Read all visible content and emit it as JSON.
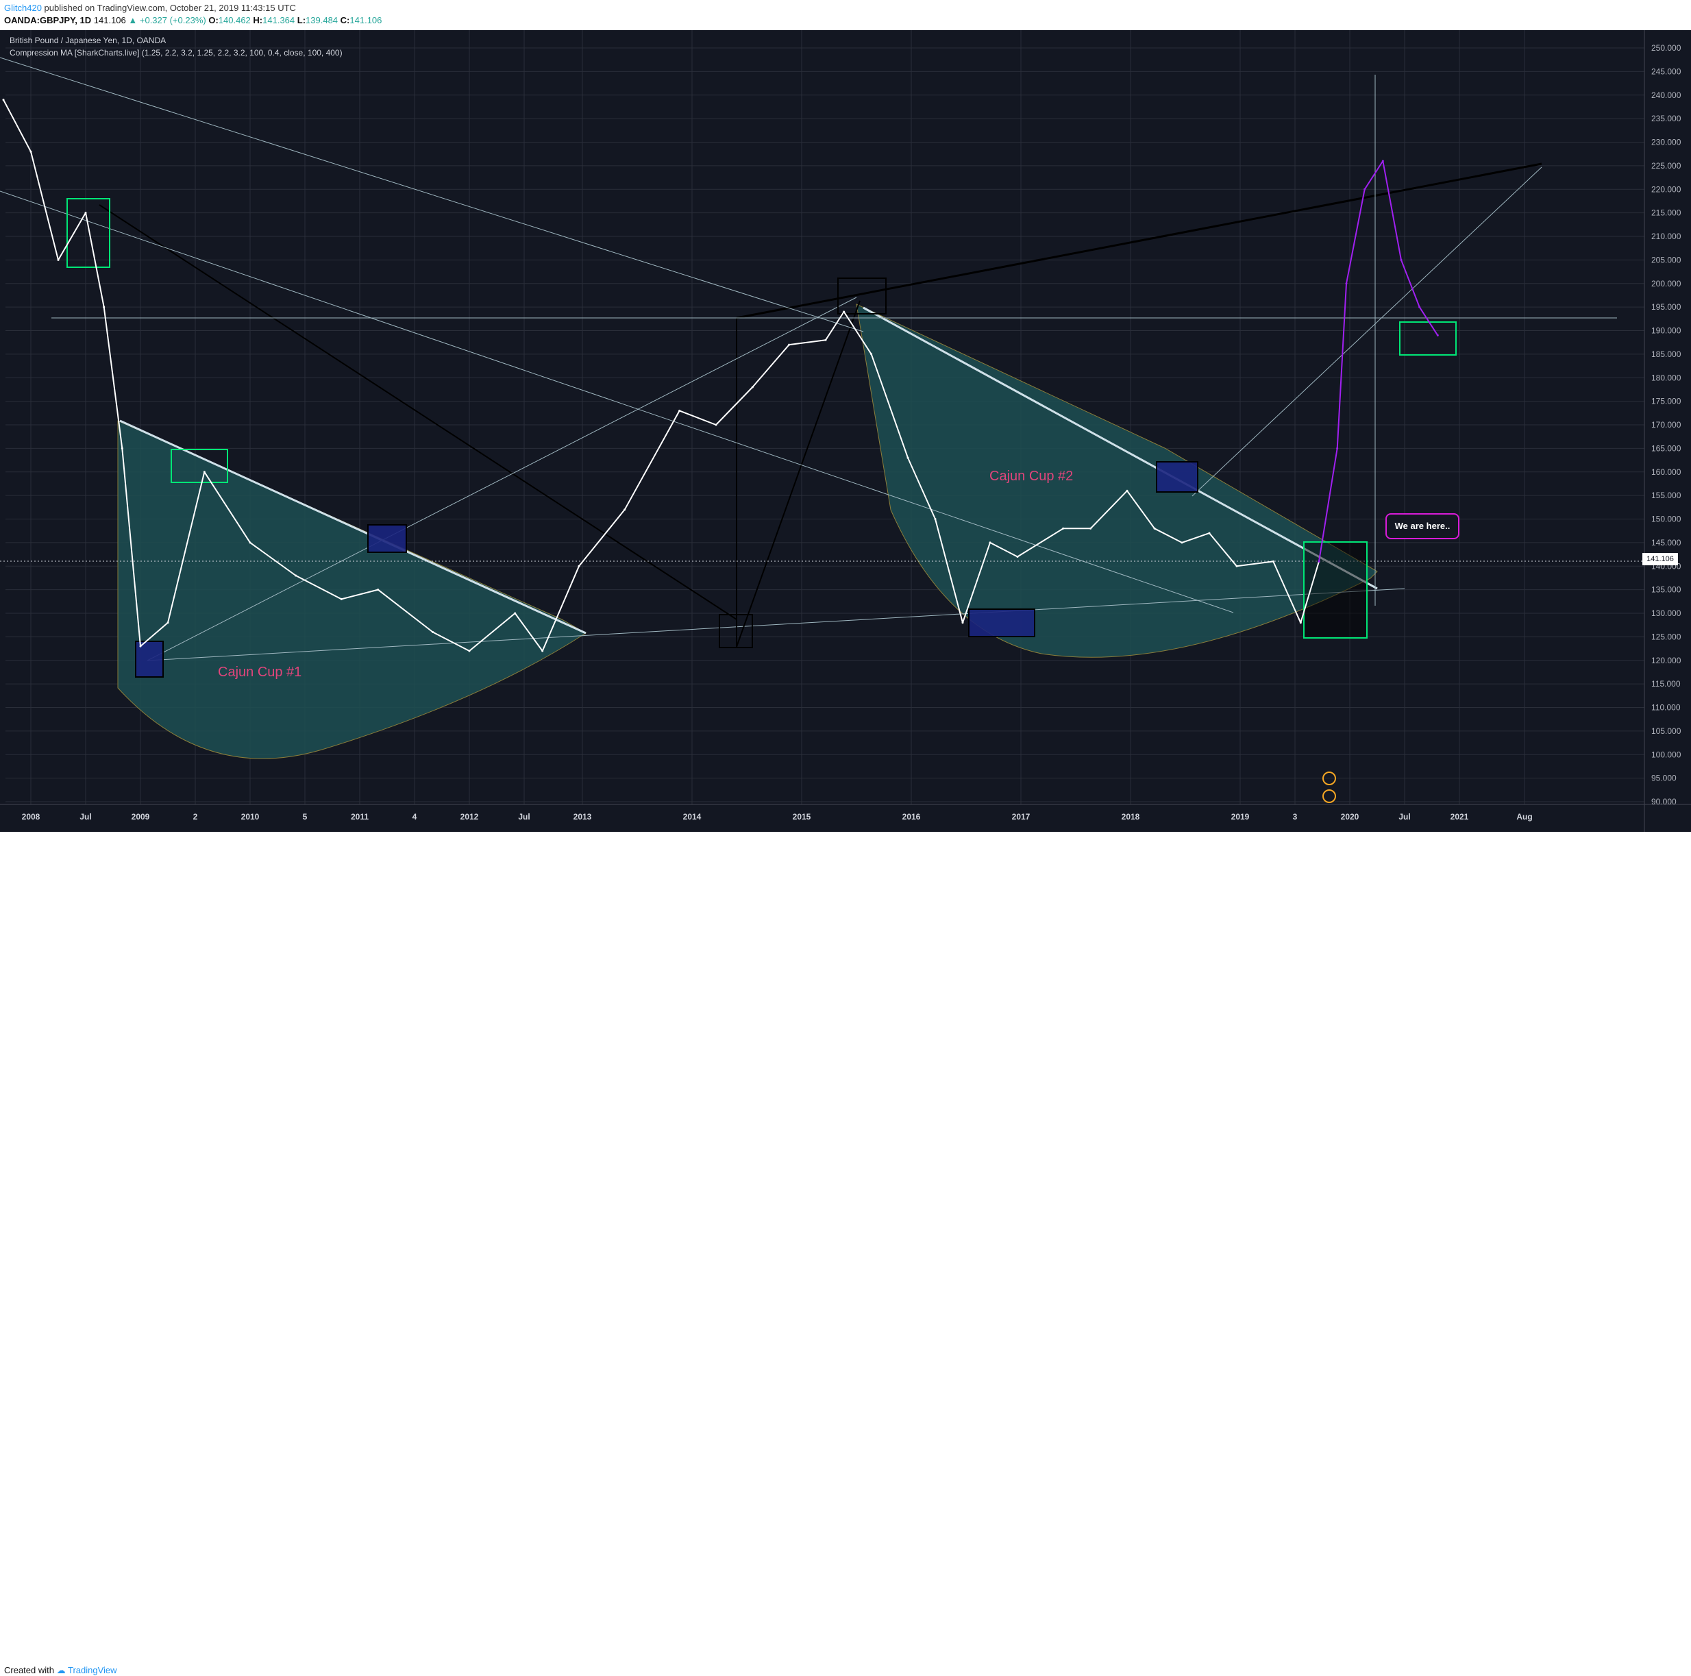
{
  "header": {
    "username": "Glitch420",
    "published_text": "published on TradingView.com, October 21, 2019 11:43:15 UTC",
    "symbol_line": "OANDA:GBPJPY, 1D",
    "last": "141.106",
    "change": "▲ +0.327 (+0.23%)",
    "open_label": "O:",
    "open": "140.462",
    "high_label": "H:",
    "high": "141.364",
    "low_label": "L:",
    "low": "139.484",
    "close_label": "C:",
    "close": "141.106"
  },
  "legend": {
    "title": "British Pound / Japanese Yen, 1D, OANDA",
    "indicator": "Compression MA [SharkCharts.live] (1.25, 2.2, 3.2, 1.25, 2.2, 3.2, 100, 0.4, close, 100, 400)"
  },
  "annotations": {
    "cup1": "Cajun Cup #1",
    "cup2": "Cajun Cup #2",
    "callout": "We are here.."
  },
  "footer": {
    "created_with": "Created with",
    "brand": "TradingView"
  },
  "colors": {
    "background": "#131722",
    "price": "#ffffff",
    "ma_fast": "#e91e63",
    "projection": "#a020f0",
    "cup_fill": "#1d4f52",
    "box_blue": "#1a237e",
    "box_green": "#00e676",
    "grid": "#2a2e39"
  },
  "chart_data": {
    "type": "line",
    "title": "British Pound / Japanese Yen, 1D, OANDA",
    "xlabel": "",
    "ylabel": "",
    "ylim": [
      90,
      250
    ],
    "y_ticks": [
      "250.000",
      "245.000",
      "240.000",
      "235.000",
      "230.000",
      "225.000",
      "220.000",
      "215.000",
      "210.000",
      "205.000",
      "200.000",
      "195.000",
      "190.000",
      "185.000",
      "180.000",
      "175.000",
      "170.000",
      "165.000",
      "160.000",
      "155.000",
      "150.000",
      "145.000",
      "140.000",
      "135.000",
      "130.000",
      "125.000",
      "120.000",
      "115.000",
      "110.000",
      "105.000",
      "100.000",
      "95.000",
      "90.000"
    ],
    "x_ticks": [
      "2008",
      "Jul",
      "2009",
      "2",
      "2010",
      "5",
      "2011",
      "4",
      "2012",
      "Jul",
      "2013",
      "2014",
      "2015",
      "2016",
      "2017",
      "2018",
      "2019",
      "3",
      "2020",
      "Jul",
      "2021",
      "Aug"
    ],
    "last_price": "141.106",
    "series": [
      {
        "name": "GBPJPY",
        "x": [
          "2007-10",
          "2008-01",
          "2008-04",
          "2008-07",
          "2008-09",
          "2008-11",
          "2009-01",
          "2009-04",
          "2009-08",
          "2010-01",
          "2010-06",
          "2010-11",
          "2011-03",
          "2011-09",
          "2012-01",
          "2012-06",
          "2012-09",
          "2013-01",
          "2013-06",
          "2013-12",
          "2014-04",
          "2014-08",
          "2014-12",
          "2015-04",
          "2015-06",
          "2015-09",
          "2016-01",
          "2016-04",
          "2016-07",
          "2016-10",
          "2017-01",
          "2017-06",
          "2017-09",
          "2018-01",
          "2018-04",
          "2018-07",
          "2018-10",
          "2019-01",
          "2019-05",
          "2019-08",
          "2019-10"
        ],
        "values": [
          239,
          228,
          205,
          215,
          195,
          165,
          123,
          128,
          160,
          145,
          138,
          133,
          135,
          126,
          122,
          130,
          122,
          140,
          152,
          173,
          170,
          178,
          187,
          188,
          194,
          185,
          163,
          150,
          128,
          145,
          142,
          148,
          148,
          156,
          148,
          145,
          147,
          140,
          141,
          128,
          141
        ]
      },
      {
        "name": "",
        "x": [
          "2019-10",
          "2019-12",
          "2020-01",
          "2020-03",
          "2020-05",
          "2020-07",
          "2020-09",
          "2020-11"
        ],
        "values": [
          141,
          165,
          200,
          220,
          226,
          205,
          195,
          189
        ]
      }
    ]
  }
}
